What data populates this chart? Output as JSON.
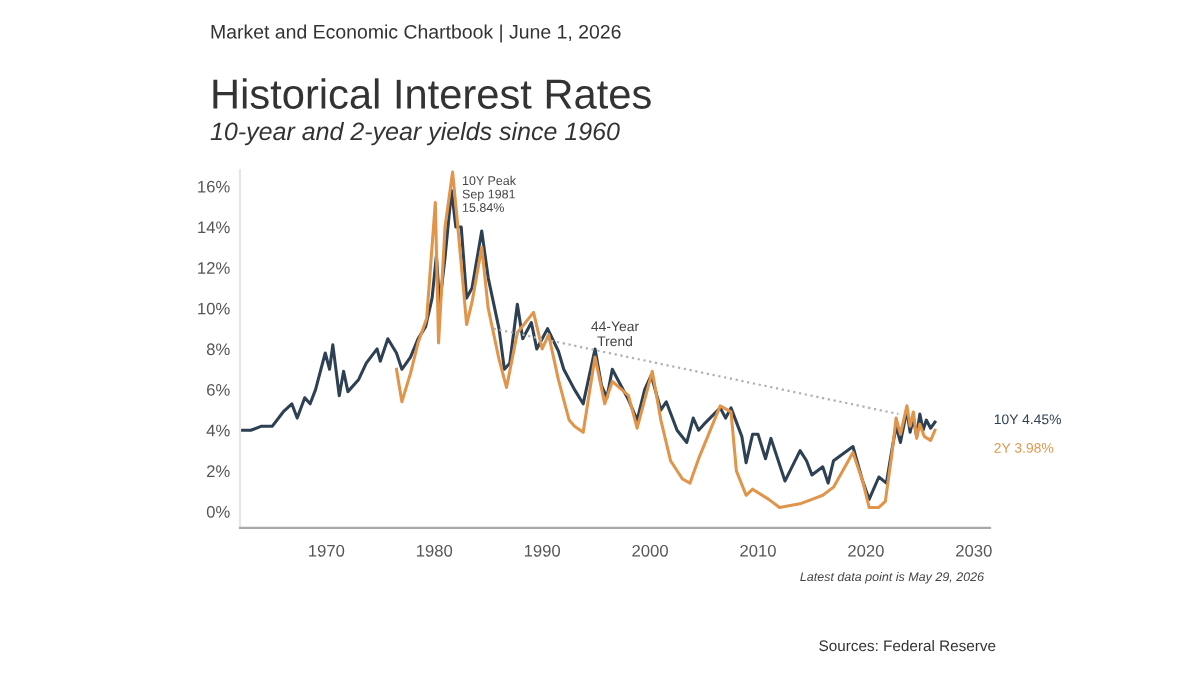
{
  "chart_data": {
    "type": "line",
    "title": "Historical Interest Rates",
    "subtitle": "10-year and 2-year yields since 1960",
    "annotations": [
      "Market and Economic Chartbook | June 1, 2026",
      "10Y Peak\nSep 1981\n15.84%",
      "44-Year\nTrend",
      "10Y 4.45%",
      "2Y 3.98%",
      "Latest data point is May 29, 2026",
      "Sources: Federal Reserve"
    ],
    "xlim": [
      1962,
      2031.5
    ],
    "xticks": [
      1970,
      1980,
      1990,
      2000,
      2010,
      2020,
      2030
    ],
    "ylim": [
      -0.8,
      16.8
    ],
    "yticks": [
      {
        "value": 0,
        "label": "0%"
      },
      {
        "value": 2,
        "label": "2%"
      },
      {
        "value": 4,
        "label": "4%"
      },
      {
        "value": 6,
        "label": "6%"
      },
      {
        "value": 8,
        "label": "8%"
      },
      {
        "value": 10,
        "label": "10%"
      },
      {
        "value": 12,
        "label": "12%"
      },
      {
        "value": 14,
        "label": "14%"
      },
      {
        "value": 16,
        "label": "16%"
      }
    ],
    "grid": false,
    "legend": false,
    "series": [
      {
        "color": "#2e4053",
        "x": [
          1962,
          1963,
          1964,
          1965,
          1966,
          1966.8,
          1967.3,
          1968,
          1968.5,
          1969,
          1969.9,
          1970.3,
          1970.6,
          1971.2,
          1971.6,
          1972,
          1973,
          1973.7,
          1974.7,
          1975,
          1975.7,
          1976.5,
          1977,
          1977.8,
          1978.5,
          1979.2,
          1979.8,
          1980.2,
          1980.5,
          1981,
          1981.6,
          1982,
          1982.5,
          1983,
          1983.5,
          1984.4,
          1985,
          1986,
          1986.5,
          1987,
          1987.7,
          1988.2,
          1989,
          1989.5,
          1990.5,
          1991.5,
          1992,
          1993,
          1993.8,
          1994.9,
          1995.5,
          1996,
          1996.5,
          1997,
          1998,
          1998.8,
          1999.5,
          2000.1,
          2001,
          2001.5,
          2002.5,
          2003.4,
          2004,
          2004.5,
          2005,
          2006.5,
          2007,
          2007.5,
          2008.5,
          2008.9,
          2009.5,
          2010,
          2010.7,
          2011.2,
          2012.5,
          2013.9,
          2014.5,
          2015,
          2016,
          2016.5,
          2017,
          2018.8,
          2019.7,
          2020.3,
          2021.2,
          2021.9,
          2022.4,
          2022.8,
          2023.2,
          2023.8,
          2024.1,
          2024.4,
          2024.7,
          2025,
          2025.3,
          2025.6,
          2026.0,
          2026.4
        ],
        "values": [
          4.0,
          4.0,
          4.2,
          4.2,
          4.9,
          5.3,
          4.6,
          5.6,
          5.3,
          6.0,
          7.8,
          7.0,
          8.2,
          5.7,
          6.9,
          5.9,
          6.5,
          7.3,
          8.0,
          7.4,
          8.5,
          7.8,
          7.0,
          7.6,
          8.5,
          9.1,
          10.5,
          12.6,
          10.2,
          12.5,
          15.8,
          14.0,
          14.0,
          10.5,
          11.0,
          13.8,
          11.5,
          9.0,
          7.0,
          7.3,
          10.2,
          8.5,
          9.3,
          8.0,
          9.0,
          7.9,
          7.0,
          6.0,
          5.3,
          8.0,
          6.2,
          5.6,
          7.0,
          6.5,
          5.5,
          4.5,
          6.0,
          6.7,
          5.0,
          5.4,
          4.0,
          3.4,
          4.6,
          4.0,
          4.3,
          5.1,
          4.6,
          5.1,
          3.7,
          2.4,
          3.8,
          3.8,
          2.6,
          3.6,
          1.5,
          3.0,
          2.5,
          1.8,
          2.2,
          1.4,
          2.5,
          3.2,
          1.5,
          0.6,
          1.7,
          1.4,
          3.0,
          4.2,
          3.4,
          5.0,
          3.9,
          4.6,
          3.7,
          4.8,
          4.0,
          4.5,
          4.1,
          4.4
        ]
      },
      {
        "color": "#e0954a",
        "x": [
          1976.5,
          1977,
          1977.8,
          1978.5,
          1979.3,
          1980.1,
          1980.4,
          1981,
          1981.7,
          1982.1,
          1982.7,
          1983,
          1983.5,
          1984.4,
          1985,
          1986,
          1986.7,
          1987.7,
          1989.2,
          1990,
          1990.6,
          1991.5,
          1992.5,
          1993,
          1993.8,
          1994.9,
          1995.8,
          1996.5,
          1998,
          1998.8,
          2000.2,
          2001,
          2001.9,
          2003,
          2003.7,
          2004.5,
          2006.5,
          2007.5,
          2008,
          2008.9,
          2009.5,
          2011,
          2012,
          2014,
          2015,
          2016,
          2017,
          2018.8,
          2019.7,
          2020.3,
          2021.2,
          2021.8,
          2022.4,
          2022.8,
          2023.2,
          2023.8,
          2024.1,
          2024.4,
          2024.7,
          2025,
          2025.4,
          2026,
          2026.4
        ],
        "values": [
          7.0,
          5.4,
          6.8,
          8.3,
          9.5,
          15.2,
          8.3,
          14.0,
          16.7,
          14.5,
          11.0,
          9.2,
          10.3,
          13.0,
          10.0,
          7.5,
          6.1,
          8.8,
          9.8,
          8.0,
          8.7,
          6.5,
          4.5,
          4.2,
          3.9,
          7.6,
          5.3,
          6.4,
          5.7,
          4.1,
          6.9,
          4.5,
          2.5,
          1.6,
          1.4,
          2.6,
          5.2,
          4.9,
          2.0,
          0.8,
          1.1,
          0.6,
          0.2,
          0.4,
          0.6,
          0.8,
          1.2,
          2.9,
          1.5,
          0.2,
          0.2,
          0.5,
          2.8,
          4.6,
          3.8,
          5.2,
          4.2,
          4.9,
          3.6,
          4.3,
          3.7,
          3.5,
          4.0
        ]
      },
      {
        "type": "line",
        "color": "#b0b0b0",
        "line_style": "dotted",
        "x": [
          1985.5,
          2023
        ],
        "values": [
          9.0,
          4.8
        ]
      }
    ]
  }
}
